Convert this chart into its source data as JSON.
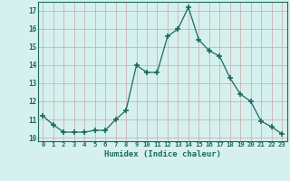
{
  "x": [
    0,
    1,
    2,
    3,
    4,
    5,
    6,
    7,
    8,
    9,
    10,
    11,
    12,
    13,
    14,
    15,
    16,
    17,
    18,
    19,
    20,
    21,
    22,
    23
  ],
  "y": [
    11.2,
    10.7,
    10.3,
    10.3,
    10.3,
    10.4,
    10.4,
    11.0,
    11.5,
    14.0,
    13.6,
    13.6,
    15.6,
    16.0,
    17.2,
    15.4,
    14.8,
    14.5,
    13.3,
    12.4,
    12.0,
    10.9,
    10.6,
    10.2
  ],
  "xlabel": "Humidex (Indice chaleur)",
  "ylim": [
    9.8,
    17.5
  ],
  "xlim": [
    -0.5,
    23.5
  ],
  "yticks": [
    10,
    11,
    12,
    13,
    14,
    15,
    16,
    17
  ],
  "xticks": [
    0,
    1,
    2,
    3,
    4,
    5,
    6,
    7,
    8,
    9,
    10,
    11,
    12,
    13,
    14,
    15,
    16,
    17,
    18,
    19,
    20,
    21,
    22,
    23
  ],
  "xtick_labels": [
    "0",
    "1",
    "2",
    "3",
    "4",
    "5",
    "6",
    "7",
    "8",
    "9",
    "10",
    "11",
    "12",
    "13",
    "14",
    "15",
    "16",
    "17",
    "18",
    "19",
    "20",
    "21",
    "22",
    "23"
  ],
  "line_color": "#1a6b5e",
  "marker_color": "#1a6b5e",
  "bg_color": "#d6f0ee",
  "grid_color": "#c8a8a8",
  "tick_color": "#1a6b5e",
  "label_color": "#1a6b5e",
  "spine_color": "#1a6b5e"
}
